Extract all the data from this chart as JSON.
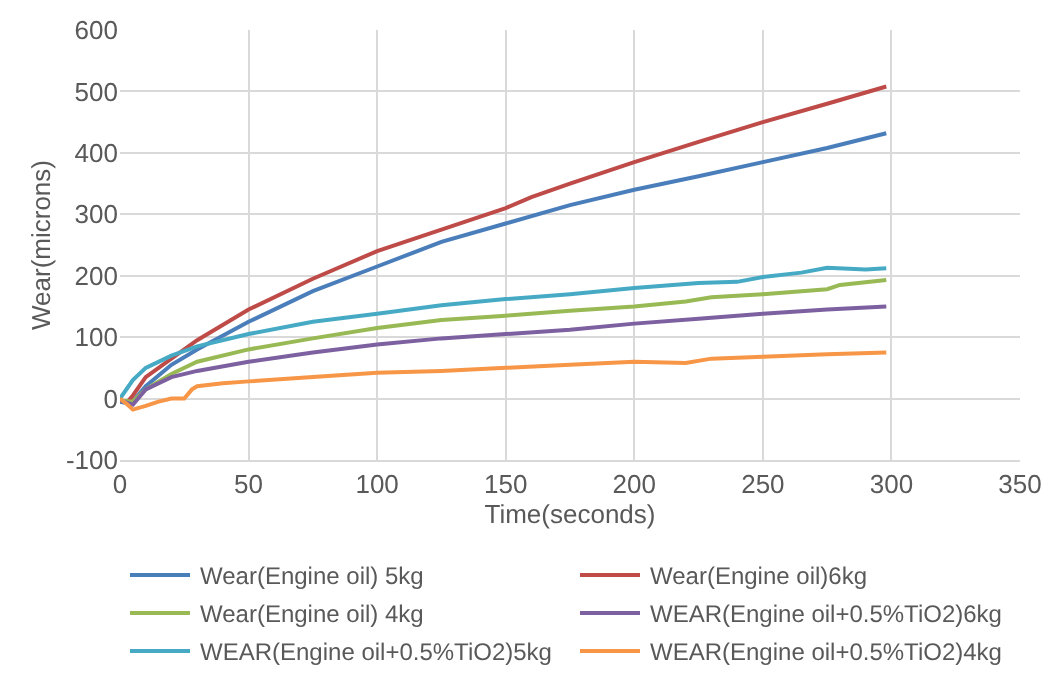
{
  "chart_data": {
    "type": "line",
    "xlabel": "Time(seconds)",
    "ylabel": "Wear(microns)",
    "xlim": [
      0,
      350
    ],
    "xticks": [
      0,
      50,
      100,
      150,
      200,
      250,
      300,
      350
    ],
    "ylim": [
      -100,
      600
    ],
    "yticks": [
      -100,
      0,
      100,
      200,
      300,
      400,
      500,
      600
    ],
    "grid": true,
    "legend": "bottom",
    "marker": "none",
    "line_style": "solid",
    "series": [
      {
        "name": "Wear(Engine oil) 5kg",
        "color": "#4a7ebb",
        "x": [
          0,
          3,
          5,
          10,
          20,
          30,
          50,
          75,
          100,
          125,
          150,
          175,
          200,
          225,
          250,
          275,
          298
        ],
        "values": [
          -5,
          -8,
          -5,
          20,
          55,
          80,
          125,
          175,
          215,
          255,
          285,
          315,
          340,
          362,
          385,
          408,
          432
        ]
      },
      {
        "name": "Wear(Engine oil)6kg",
        "color": "#be4b48",
        "x": [
          0,
          3,
          5,
          10,
          20,
          30,
          50,
          75,
          100,
          125,
          150,
          160,
          175,
          200,
          225,
          250,
          275,
          298
        ],
        "values": [
          -3,
          -5,
          5,
          35,
          65,
          95,
          145,
          195,
          240,
          275,
          310,
          328,
          350,
          385,
          418,
          450,
          480,
          508
        ]
      },
      {
        "name": "Wear(Engine oil) 4kg",
        "color": "#98b954",
        "x": [
          0,
          5,
          10,
          20,
          30,
          50,
          75,
          100,
          125,
          150,
          175,
          200,
          220,
          230,
          250,
          275,
          280,
          298
        ],
        "values": [
          -3,
          -5,
          15,
          40,
          60,
          80,
          98,
          115,
          128,
          135,
          143,
          150,
          158,
          165,
          170,
          178,
          185,
          193
        ]
      },
      {
        "name": "WEAR(Engine oil+0.5%TiO2)6kg",
        "color": "#7d60a0",
        "x": [
          0,
          5,
          10,
          20,
          30,
          50,
          75,
          100,
          125,
          150,
          175,
          200,
          225,
          250,
          275,
          298
        ],
        "values": [
          -3,
          -10,
          15,
          35,
          45,
          60,
          75,
          88,
          98,
          105,
          112,
          122,
          130,
          138,
          145,
          150
        ]
      },
      {
        "name": "WEAR(Engine oil+0.5%TiO2)5kg",
        "color": "#46aac5",
        "x": [
          0,
          5,
          10,
          20,
          30,
          50,
          75,
          100,
          125,
          150,
          175,
          200,
          225,
          240,
          250,
          265,
          275,
          290,
          298
        ],
        "values": [
          0,
          30,
          50,
          70,
          85,
          105,
          125,
          138,
          152,
          162,
          170,
          180,
          188,
          190,
          198,
          205,
          213,
          210,
          212
        ]
      },
      {
        "name": "WEAR(Engine oil+0.5%TiO2)4kg",
        "color": "#f79646",
        "x": [
          0,
          3,
          5,
          10,
          15,
          20,
          25,
          28,
          30,
          40,
          50,
          75,
          100,
          125,
          150,
          175,
          200,
          220,
          230,
          250,
          275,
          298
        ],
        "values": [
          0,
          -10,
          -18,
          -12,
          -5,
          0,
          0,
          15,
          20,
          25,
          28,
          35,
          42,
          45,
          50,
          55,
          60,
          58,
          65,
          68,
          72,
          75
        ]
      }
    ]
  }
}
